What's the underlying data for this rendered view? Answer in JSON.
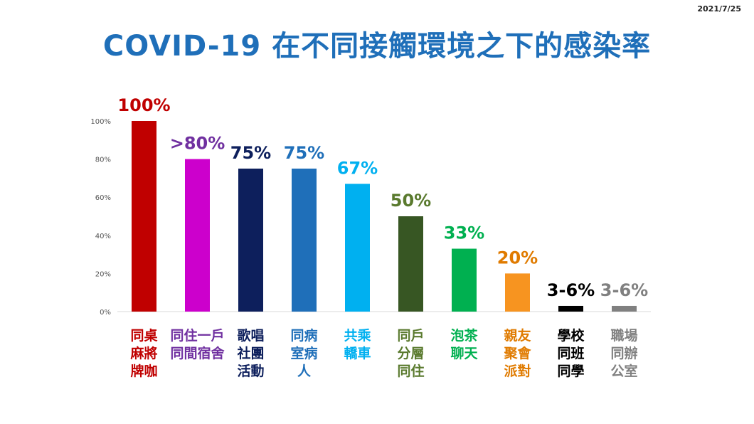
{
  "header": {
    "date": "2021/7/25",
    "title": "COVID-19 在不同接觸環境之下的感染率"
  },
  "chart_data": {
    "type": "bar",
    "title": "COVID-19 在不同接觸環境之下的感染率",
    "xlabel": "",
    "ylabel": "",
    "ylim": [
      0,
      100
    ],
    "ytick_labels": [
      "0%",
      "20%",
      "40%",
      "60%",
      "80%",
      "100%"
    ],
    "grid": false,
    "categories": [
      [
        "同桌",
        "麻將",
        "牌咖"
      ],
      [
        "同住一戶",
        "同間宿舍"
      ],
      [
        "歌唱",
        "社團",
        "活動"
      ],
      [
        "同病",
        "室病",
        "人"
      ],
      [
        "共乘",
        "轎車"
      ],
      [
        "同戶",
        "分層",
        "同住"
      ],
      [
        "泡茶",
        "聊天"
      ],
      [
        "親友",
        "聚會",
        "派對"
      ],
      [
        "學校",
        "同班",
        "同學"
      ],
      [
        "職場",
        "同辦",
        "公室"
      ]
    ],
    "values": [
      100,
      80,
      75,
      75,
      67,
      50,
      33,
      20,
      3,
      3
    ],
    "data_labels": [
      "100%",
      ">80%",
      "75%",
      "75%",
      "67%",
      "50%",
      "33%",
      "20%",
      "3-6%",
      "3-6%"
    ],
    "colors": [
      "#c00000",
      "#cc00cc",
      "#0d1f5c",
      "#1f6fb9",
      "#00b0f0",
      "#375623",
      "#00b050",
      "#f79420",
      "#000000",
      "#808080"
    ],
    "label_colors": [
      "#c00000",
      "#7030a0",
      "#0d1f5c",
      "#1f6fb9",
      "#00b0f0",
      "#5a7a2e",
      "#00b050",
      "#e07b00",
      "#000000",
      "#808080"
    ]
  }
}
